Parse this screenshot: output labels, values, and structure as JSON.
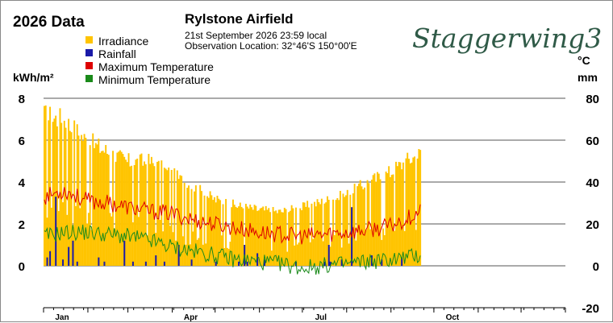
{
  "chart_data": {
    "type": "bar",
    "title": "2026 Data",
    "station": "Rylstone Airfield",
    "date_line": "21st September 2026  23:59 local",
    "location_line": "Observation Location:   32°46'S 150°00'E",
    "brand": "Staggerwing3",
    "left_unit": "kWh/m²",
    "right_unit_temp": "°C",
    "right_unit_rain": "mm",
    "left_ticks": [
      "0",
      "2",
      "4",
      "6",
      "8"
    ],
    "right_ticks": [
      "-20",
      "0",
      "20",
      "40",
      "60",
      "80"
    ],
    "x_ticks": [
      "Jan",
      "Apr",
      "Jul",
      "Oct"
    ],
    "ylim_left": [
      -2,
      8
    ],
    "ylim_right": [
      -20,
      80
    ],
    "legend": [
      {
        "label": "Irradiance",
        "color": "#ffc400"
      },
      {
        "label": "Rainfall",
        "color": "#1a1aa8"
      },
      {
        "label": "Maximum Temperature",
        "color": "#dd0000"
      },
      {
        "label": "Minimum Temperature",
        "color": "#1a8a1a"
      }
    ],
    "series": [
      {
        "name": "Irradiance",
        "unit": "kWh/m²",
        "monthly_points": [
          {
            "day": 1,
            "value": 7.2
          },
          {
            "day": 15,
            "value": 7.0
          },
          {
            "day": 31,
            "value": 6.0
          },
          {
            "day": 45,
            "value": 5.5
          },
          {
            "day": 59,
            "value": 5.0
          },
          {
            "day": 75,
            "value": 5.0
          },
          {
            "day": 90,
            "value": 4.4
          },
          {
            "day": 105,
            "value": 3.8
          },
          {
            "day": 120,
            "value": 3.2
          },
          {
            "day": 135,
            "value": 2.9
          },
          {
            "day": 151,
            "value": 2.7
          },
          {
            "day": 166,
            "value": 2.6
          },
          {
            "day": 181,
            "value": 2.8
          },
          {
            "day": 196,
            "value": 3.1
          },
          {
            "day": 212,
            "value": 3.4
          },
          {
            "day": 227,
            "value": 4.0
          },
          {
            "day": 243,
            "value": 4.5
          },
          {
            "day": 253,
            "value": 5.0
          },
          {
            "day": 264,
            "value": 5.4
          }
        ]
      },
      {
        "name": "Maximum Temperature",
        "unit": "°C",
        "monthly_points": [
          {
            "day": 1,
            "value": 33
          },
          {
            "day": 15,
            "value": 36
          },
          {
            "day": 31,
            "value": 31
          },
          {
            "day": 45,
            "value": 30
          },
          {
            "day": 59,
            "value": 28
          },
          {
            "day": 75,
            "value": 26
          },
          {
            "day": 90,
            "value": 25
          },
          {
            "day": 105,
            "value": 22
          },
          {
            "day": 120,
            "value": 20
          },
          {
            "day": 135,
            "value": 18
          },
          {
            "day": 151,
            "value": 16
          },
          {
            "day": 166,
            "value": 15
          },
          {
            "day": 181,
            "value": 14
          },
          {
            "day": 196,
            "value": 15
          },
          {
            "day": 212,
            "value": 16
          },
          {
            "day": 227,
            "value": 17
          },
          {
            "day": 243,
            "value": 19
          },
          {
            "day": 253,
            "value": 22
          },
          {
            "day": 264,
            "value": 26
          }
        ]
      },
      {
        "name": "Minimum Temperature",
        "unit": "°C",
        "monthly_points": [
          {
            "day": 1,
            "value": 14
          },
          {
            "day": 15,
            "value": 16
          },
          {
            "day": 31,
            "value": 16
          },
          {
            "day": 45,
            "value": 15
          },
          {
            "day": 59,
            "value": 14
          },
          {
            "day": 75,
            "value": 12
          },
          {
            "day": 90,
            "value": 9
          },
          {
            "day": 105,
            "value": 7
          },
          {
            "day": 120,
            "value": 5
          },
          {
            "day": 135,
            "value": 3
          },
          {
            "day": 151,
            "value": 2
          },
          {
            "day": 166,
            "value": 1
          },
          {
            "day": 181,
            "value": -1
          },
          {
            "day": 196,
            "value": 0
          },
          {
            "day": 212,
            "value": 1
          },
          {
            "day": 227,
            "value": 2
          },
          {
            "day": 243,
            "value": 3
          },
          {
            "day": 253,
            "value": 4
          },
          {
            "day": 264,
            "value": 5
          }
        ]
      },
      {
        "name": "Rainfall",
        "unit": "mm",
        "events": [
          {
            "day": 3,
            "value": 4
          },
          {
            "day": 5,
            "value": 7
          },
          {
            "day": 9,
            "value": 33
          },
          {
            "day": 14,
            "value": 3
          },
          {
            "day": 18,
            "value": 9
          },
          {
            "day": 21,
            "value": 12
          },
          {
            "day": 24,
            "value": 2
          },
          {
            "day": 39,
            "value": 4
          },
          {
            "day": 43,
            "value": 2
          },
          {
            "day": 57,
            "value": 12
          },
          {
            "day": 63,
            "value": 2
          },
          {
            "day": 72,
            "value": 2
          },
          {
            "day": 79,
            "value": 5
          },
          {
            "day": 85,
            "value": 2
          },
          {
            "day": 95,
            "value": 10
          },
          {
            "day": 104,
            "value": 3
          },
          {
            "day": 121,
            "value": 2
          },
          {
            "day": 137,
            "value": 2
          },
          {
            "day": 141,
            "value": 10
          },
          {
            "day": 143,
            "value": 2
          },
          {
            "day": 150,
            "value": 6
          },
          {
            "day": 155,
            "value": 3
          },
          {
            "day": 177,
            "value": 2
          },
          {
            "day": 197,
            "value": 2
          },
          {
            "day": 200,
            "value": 10
          },
          {
            "day": 201,
            "value": 2
          },
          {
            "day": 209,
            "value": 3
          },
          {
            "day": 216,
            "value": 28
          },
          {
            "day": 230,
            "value": 5
          },
          {
            "day": 237,
            "value": 3
          },
          {
            "day": 251,
            "value": 4
          }
        ]
      }
    ],
    "last_day": 264,
    "grid": true
  }
}
